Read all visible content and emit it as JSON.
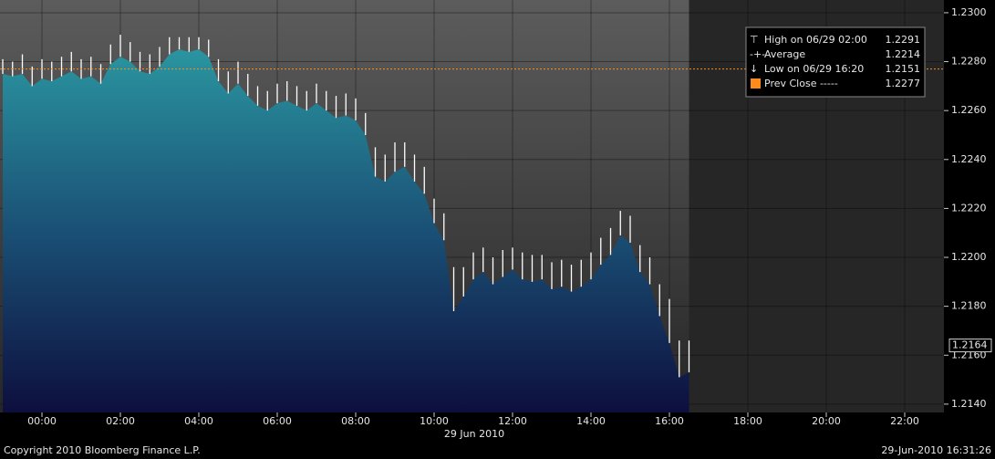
{
  "chart_data": {
    "type": "hilo",
    "date_label": "29 Jun 2010",
    "footer_left": "Copyright 2010 Bloomberg Finance L.P.",
    "footer_right": "29-Jun-2010 16:31:26",
    "x": [
      -1.0,
      -0.75,
      -0.5,
      -0.25,
      0,
      0.25,
      0.5,
      0.75,
      1.0,
      1.25,
      1.5,
      1.75,
      2.0,
      2.25,
      2.5,
      2.75,
      3.0,
      3.25,
      3.5,
      3.75,
      4.0,
      4.25,
      4.5,
      4.75,
      5.0,
      5.25,
      5.5,
      5.75,
      6.0,
      6.25,
      6.5,
      6.75,
      7.0,
      7.25,
      7.5,
      7.75,
      8.0,
      8.25,
      8.5,
      8.75,
      9.0,
      9.25,
      9.5,
      9.75,
      10.0,
      10.25,
      10.5,
      10.75,
      11.0,
      11.25,
      11.5,
      11.75,
      12.0,
      12.25,
      12.5,
      12.75,
      13.0,
      13.25,
      13.5,
      13.75,
      14.0,
      14.25,
      14.5,
      14.75,
      15.0,
      15.25,
      15.5,
      15.75,
      16.0,
      16.25,
      16.5
    ],
    "series": [
      {
        "name": "High",
        "color": "#ffffff",
        "values": [
          1.2281,
          1.228,
          1.2283,
          1.2278,
          1.2281,
          1.228,
          1.2282,
          1.2284,
          1.2281,
          1.2282,
          1.2279,
          1.2287,
          1.2291,
          1.2288,
          1.2284,
          1.2283,
          1.2286,
          1.229,
          1.229,
          1.229,
          1.229,
          1.2289,
          1.2281,
          1.2276,
          1.228,
          1.2275,
          1.227,
          1.2268,
          1.2271,
          1.2272,
          1.227,
          1.2268,
          1.2271,
          1.2268,
          1.2266,
          1.2267,
          1.2265,
          1.2259,
          1.2245,
          1.2242,
          1.2247,
          1.2247,
          1.2242,
          1.2237,
          1.2224,
          1.2218,
          1.2196,
          1.2196,
          1.2202,
          1.2204,
          1.22,
          1.2203,
          1.2204,
          1.2202,
          1.2201,
          1.2201,
          1.2198,
          1.2199,
          1.2197,
          1.2199,
          1.2202,
          1.2208,
          1.2212,
          1.2219,
          1.2217,
          1.2205,
          1.22,
          1.2189,
          1.2183,
          1.2166,
          1.2166
        ]
      },
      {
        "name": "Low",
        "color": "#ffffff",
        "values": [
          1.2275,
          1.2274,
          1.2275,
          1.227,
          1.2273,
          1.2272,
          1.2274,
          1.2276,
          1.2273,
          1.2274,
          1.2271,
          1.2279,
          1.2282,
          1.228,
          1.2276,
          1.2275,
          1.2278,
          1.2283,
          1.2285,
          1.2284,
          1.2285,
          1.2282,
          1.2272,
          1.2267,
          1.2271,
          1.2266,
          1.2262,
          1.226,
          1.2263,
          1.2264,
          1.2262,
          1.226,
          1.2263,
          1.226,
          1.2257,
          1.2258,
          1.2256,
          1.225,
          1.2233,
          1.2231,
          1.2235,
          1.2237,
          1.2231,
          1.2226,
          1.2214,
          1.2207,
          1.2178,
          1.2184,
          1.2191,
          1.2194,
          1.2189,
          1.2192,
          1.2195,
          1.2191,
          1.219,
          1.2191,
          1.2187,
          1.2188,
          1.2186,
          1.2188,
          1.2191,
          1.2197,
          1.2201,
          1.2209,
          1.2206,
          1.2194,
          1.2189,
          1.2176,
          1.2165,
          1.2151,
          1.2153
        ]
      }
    ],
    "xlim": [
      -1.07,
      23.0
    ],
    "xticks": [
      {
        "value": 0,
        "label": "00:00"
      },
      {
        "value": 2,
        "label": "02:00"
      },
      {
        "value": 4,
        "label": "04:00"
      },
      {
        "value": 6,
        "label": "06:00"
      },
      {
        "value": 8,
        "label": "08:00"
      },
      {
        "value": 10,
        "label": "10:00"
      },
      {
        "value": 12,
        "label": "12:00"
      },
      {
        "value": 14,
        "label": "14:00"
      },
      {
        "value": 16,
        "label": "16:00"
      },
      {
        "value": 18,
        "label": "18:00"
      },
      {
        "value": 20,
        "label": "20:00"
      },
      {
        "value": 22,
        "label": "22:00"
      }
    ],
    "ylim": [
      1.21366,
      1.23052
    ],
    "yticks": [
      {
        "value": 1.214,
        "label": "1.2140"
      },
      {
        "value": 1.216,
        "label": "1.2160"
      },
      {
        "value": 1.218,
        "label": "1.2180"
      },
      {
        "value": 1.22,
        "label": "1.2200"
      },
      {
        "value": 1.222,
        "label": "1.2220"
      },
      {
        "value": 1.224,
        "label": "1.2240"
      },
      {
        "value": 1.226,
        "label": "1.2260"
      },
      {
        "value": 1.228,
        "label": "1.2280"
      },
      {
        "value": 1.23,
        "label": "1.2300"
      }
    ],
    "last_price": 1.2164,
    "stats": [
      {
        "label": "High on 06/29 02:00",
        "value": 1.2291
      },
      {
        "label": "Average",
        "value": 1.2214
      },
      {
        "label": "Low on 06/29 16:20",
        "value": 1.2151
      },
      {
        "label": "Prev Close -----",
        "value": 1.2277,
        "color": "#ff8c1a"
      }
    ]
  }
}
